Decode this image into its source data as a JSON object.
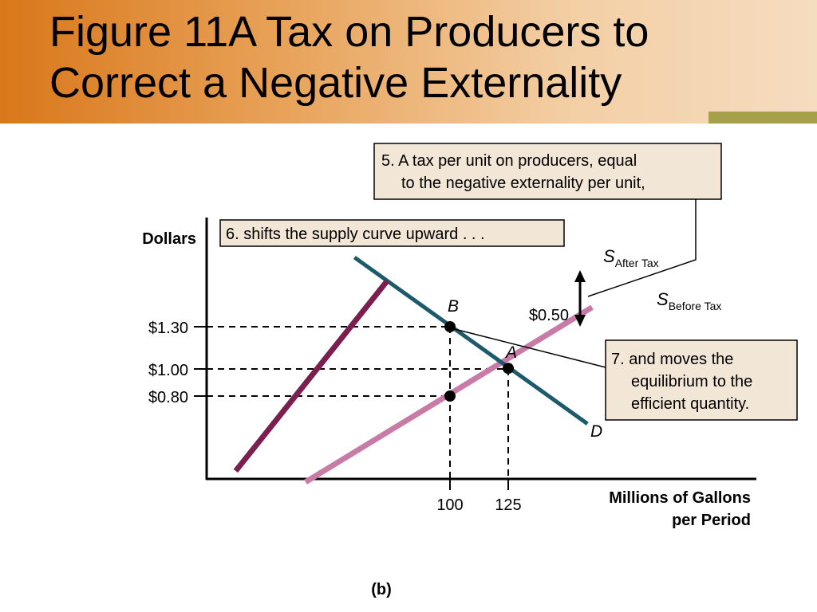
{
  "slide": {
    "title_line1": "Figure 11A Tax on Producers to",
    "title_line2": "Correct a Negative Externality",
    "caption": "(b)"
  },
  "colors": {
    "header_orange": "#d9771a",
    "olive_accent": "#a6a04a",
    "supply_after_tax": "#7a1f4f",
    "supply_before_tax": "#c97ba7",
    "demand": "#1c5a6b",
    "callout_fill": "#f2e6d6"
  },
  "chart_data": {
    "type": "line",
    "ylabel": "Dollars",
    "xlabel_line1": "Millions of Gallons",
    "xlabel_line2": "per Period",
    "x_ticks": [
      100,
      125
    ],
    "y_ticks": [
      0.8,
      1.0,
      1.3
    ],
    "x_tick_labels": [
      "100",
      "125"
    ],
    "y_tick_labels": [
      "$0.80",
      "$1.00",
      "$1.30"
    ],
    "series": [
      {
        "key": "after",
        "name_main": "S",
        "name_sub": "After Tax",
        "points": [
          [
            8,
            0.26
          ],
          [
            73,
            1.63
          ]
        ]
      },
      {
        "key": "before",
        "name_main": "S",
        "name_sub": "Before Tax",
        "points": [
          [
            38,
            0.18
          ],
          [
            161,
            1.44
          ]
        ]
      },
      {
        "key": "demand",
        "name_main": "D",
        "name_sub": "",
        "points": [
          [
            59,
            1.8
          ],
          [
            159,
            0.6
          ]
        ]
      }
    ],
    "equilibria": [
      {
        "label": "B",
        "x": 100,
        "y": 1.3
      },
      {
        "label": "A",
        "x": 125,
        "y": 1.0
      },
      {
        "label": "",
        "x": 100,
        "y": 0.8
      }
    ],
    "tax_arrow": {
      "label": "$0.50",
      "x": 157,
      "y_low": 1.17,
      "y_high": 1.66
    },
    "annotations": [
      {
        "key": "a5",
        "line1": "5. A tax per unit on producers, equal",
        "line2": "to the negative externality per unit,"
      },
      {
        "key": "a6",
        "line1": "6. shifts the supply curve upward . . ."
      },
      {
        "key": "a7",
        "line1": "7. and moves the",
        "line2": "equilibrium to the",
        "line3": "efficient quantity."
      }
    ]
  }
}
